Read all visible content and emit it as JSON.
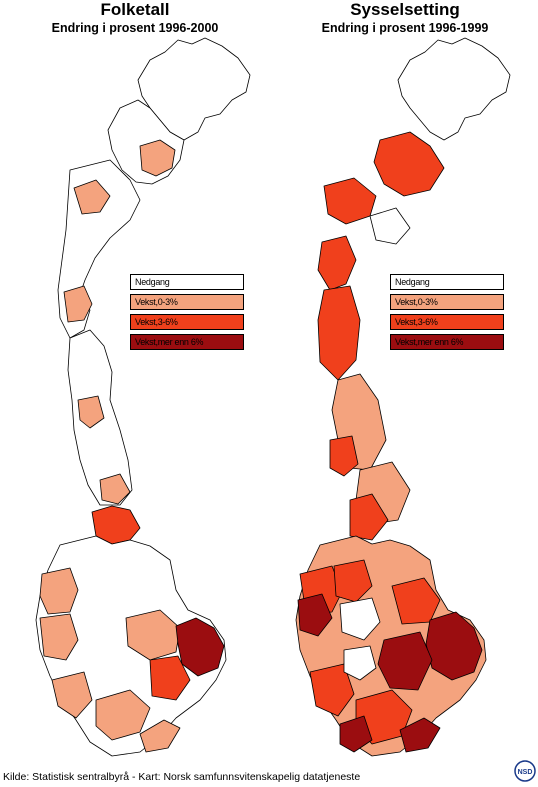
{
  "left_panel": {
    "title": "Folketall",
    "subtitle": "Endring i prosent 1996-2000"
  },
  "right_panel": {
    "title": "Sysselsetting",
    "subtitle": "Endring i prosent 1996-1999"
  },
  "legend": [
    {
      "label": "Nedgang",
      "color": "#ffffff"
    },
    {
      "label": "Vekst,0-3%",
      "color": "#f4a37e"
    },
    {
      "label": "Vekst,3-6%",
      "color": "#f0401c"
    },
    {
      "label": "Vekst,mer enn 6%",
      "color": "#9b0d10"
    }
  ],
  "source": "Kilde: Statistisk sentralbyrå - Kart: Norsk samfunnsvitenskapelig datatjeneste",
  "logo_text": "NSD"
}
